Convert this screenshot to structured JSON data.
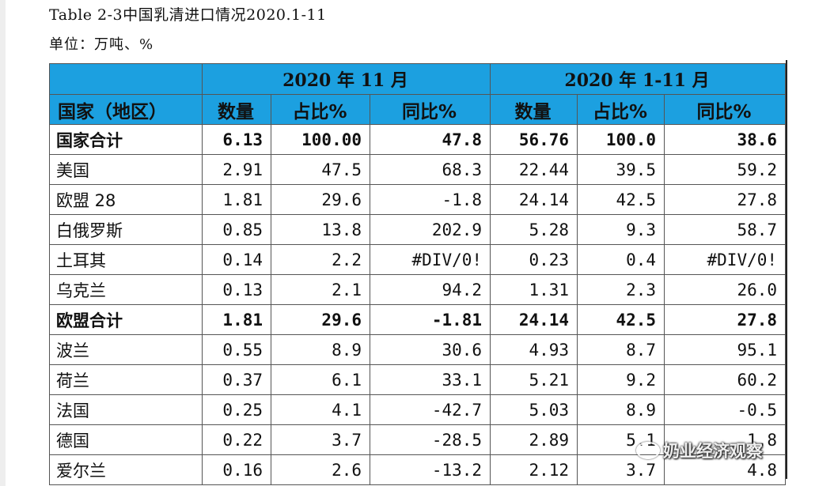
{
  "caption": "Table 2-3中国乳清进口情况2020.1-11",
  "unit": "单位：万吨、%",
  "table": {
    "group_headers": [
      "",
      "2020 年 11 月",
      "2020 年 1-11 月"
    ],
    "column_headers": [
      "国家（地区）",
      "数量",
      "占比%",
      "同比%",
      "数量",
      "占比%",
      "同比%"
    ],
    "rows": [
      {
        "region": "国家合计",
        "m_qty": "6.13",
        "m_share": "100.00",
        "m_yoy": "47.8",
        "y_qty": "56.76",
        "y_share": "100.0",
        "y_yoy": "38.6",
        "bold": true
      },
      {
        "region": "美国",
        "m_qty": "2.91",
        "m_share": "47.5",
        "m_yoy": "68.3",
        "y_qty": "22.44",
        "y_share": "39.5",
        "y_yoy": "59.2",
        "bold": false
      },
      {
        "region": "欧盟 28",
        "m_qty": "1.81",
        "m_share": "29.6",
        "m_yoy": "-1.8",
        "y_qty": "24.14",
        "y_share": "42.5",
        "y_yoy": "27.8",
        "bold": false
      },
      {
        "region": "白俄罗斯",
        "m_qty": "0.85",
        "m_share": "13.8",
        "m_yoy": "202.9",
        "y_qty": "5.28",
        "y_share": "9.3",
        "y_yoy": "58.7",
        "bold": false
      },
      {
        "region": "土耳其",
        "m_qty": "0.14",
        "m_share": "2.2",
        "m_yoy": "#DIV/0!",
        "y_qty": "0.23",
        "y_share": "0.4",
        "y_yoy": "#DIV/0!",
        "bold": false
      },
      {
        "region": "乌克兰",
        "m_qty": "0.13",
        "m_share": "2.1",
        "m_yoy": "94.2",
        "y_qty": "1.31",
        "y_share": "2.3",
        "y_yoy": "26.0",
        "bold": false
      },
      {
        "region": "欧盟合计",
        "m_qty": "1.81",
        "m_share": "29.6",
        "m_yoy": "-1.81",
        "y_qty": "24.14",
        "y_share": "42.5",
        "y_yoy": "27.8",
        "bold": true
      },
      {
        "region": "波兰",
        "m_qty": "0.55",
        "m_share": "8.9",
        "m_yoy": "30.6",
        "y_qty": "4.93",
        "y_share": "8.7",
        "y_yoy": "95.1",
        "bold": false
      },
      {
        "region": "荷兰",
        "m_qty": "0.37",
        "m_share": "6.1",
        "m_yoy": "33.1",
        "y_qty": "5.21",
        "y_share": "9.2",
        "y_yoy": "60.2",
        "bold": false
      },
      {
        "region": "法国",
        "m_qty": "0.25",
        "m_share": "4.1",
        "m_yoy": "-42.7",
        "y_qty": "5.03",
        "y_share": "8.9",
        "y_yoy": "-0.5",
        "bold": false
      },
      {
        "region": "德国",
        "m_qty": "0.22",
        "m_share": "3.7",
        "m_yoy": "-28.5",
        "y_qty": "2.89",
        "y_share": "5.1",
        "y_yoy": "1.8",
        "bold": false
      },
      {
        "region": "爱尔兰",
        "m_qty": "0.16",
        "m_share": "2.6",
        "m_yoy": "-13.2",
        "y_qty": "2.12",
        "y_share": "3.7",
        "y_yoy": "4.8",
        "bold": false
      }
    ]
  },
  "watermark": "奶业经济观察",
  "colors": {
    "header_bg": "#1ca0e0",
    "border": "#555555",
    "text": "#111111"
  }
}
